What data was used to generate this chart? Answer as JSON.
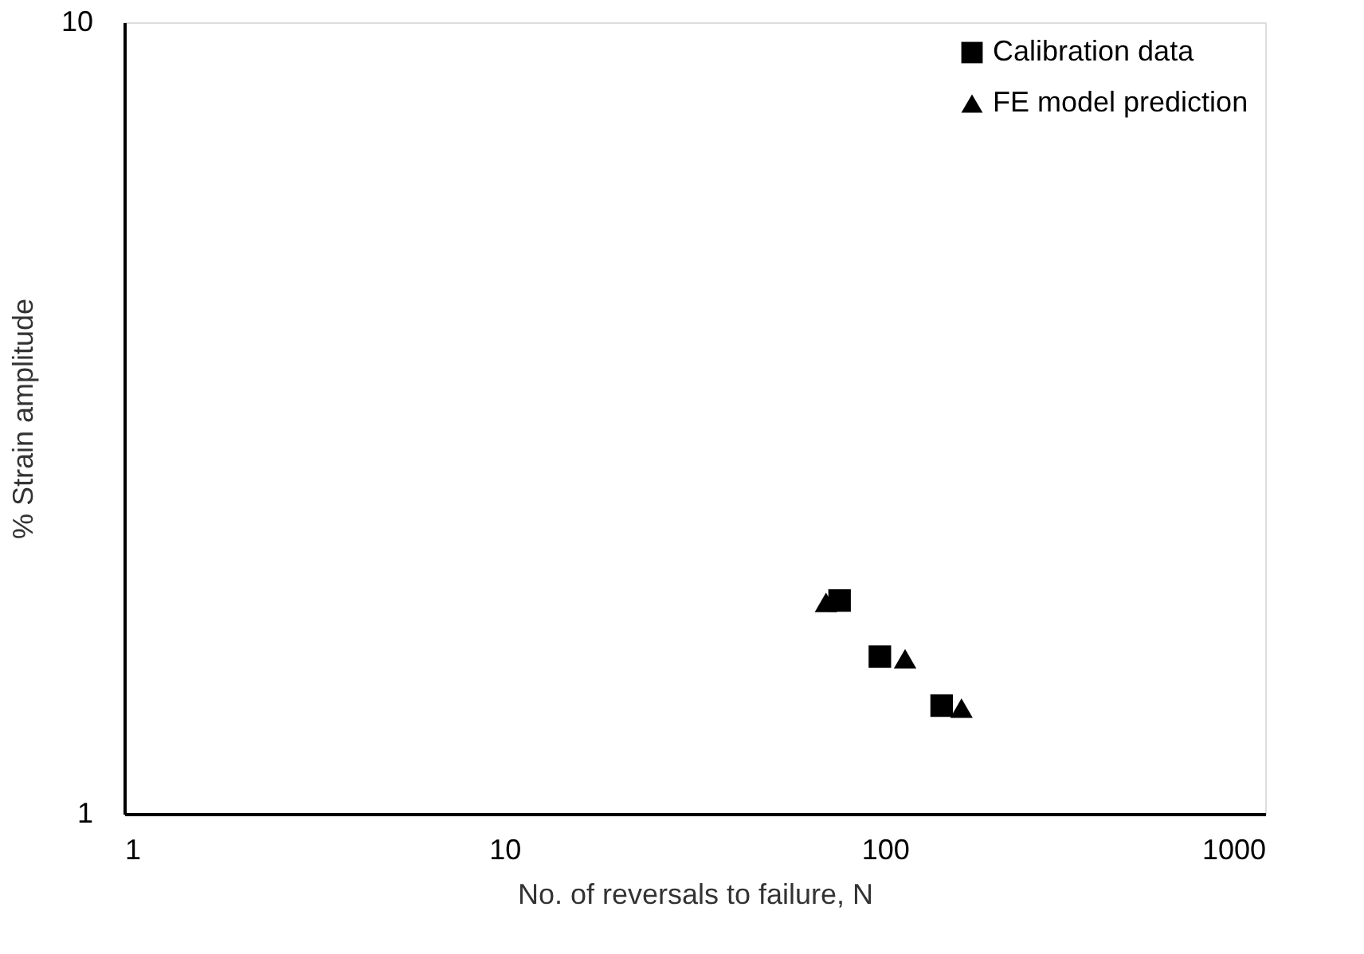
{
  "chart_data": {
    "type": "scatter",
    "xlabel": "No. of reversals to failure, N",
    "ylabel": "% Strain amplitude",
    "log": "xy",
    "xlim": [
      1,
      1000
    ],
    "xticks": [
      1,
      10,
      100,
      1000
    ],
    "ylim": [
      1,
      10
    ],
    "yticks": [
      1,
      10
    ],
    "grid": false,
    "legend": "top right",
    "series": [
      {
        "name": "Calibration data",
        "color": "#000000",
        "marker": "square",
        "x": [
          76,
          97,
          141
        ],
        "values": [
          1.86,
          1.58,
          1.37
        ]
      },
      {
        "name": "FE model prediction",
        "color": "#000000",
        "marker": "triangle",
        "x": [
          70,
          113,
          159
        ],
        "values": [
          1.85,
          1.57,
          1.36
        ]
      }
    ]
  }
}
